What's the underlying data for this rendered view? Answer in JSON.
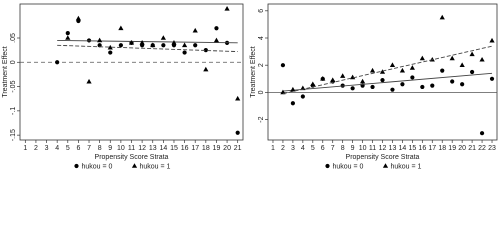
{
  "chart_data": [
    {
      "type": "scatter",
      "y_label": "Treatment Effect",
      "x_label": "Propensity Score Strata",
      "xlim": [
        0.5,
        21.5
      ],
      "xticks": [
        1,
        2,
        3,
        4,
        5,
        6,
        7,
        8,
        9,
        10,
        11,
        12,
        13,
        14,
        15,
        16,
        17,
        18,
        19,
        20,
        21
      ],
      "ylim": [
        -0.16,
        0.12
      ],
      "yticks": [
        {
          "value": -0.15,
          "label": "-.15"
        },
        {
          "value": -0.1,
          "label": "-.1"
        },
        {
          "value": -0.05,
          "label": "-.05"
        },
        0,
        {
          "value": 0.05,
          "label": ".05"
        }
      ],
      "reference_line": {
        "value": 0,
        "style": "dashed"
      },
      "series": [
        {
          "name": "hukou = 0",
          "marker": "circle",
          "color": "#000000",
          "x": [
            4,
            5,
            6,
            7,
            8,
            9,
            10,
            11,
            12,
            13,
            14,
            15,
            16,
            17,
            18,
            19,
            20,
            21
          ],
          "values": [
            0.0,
            0.06,
            0.085,
            0.045,
            0.035,
            0.02,
            0.035,
            0.04,
            0.035,
            0.035,
            0.035,
            0.035,
            0.02,
            0.035,
            0.025,
            0.07,
            0.04,
            -0.145
          ],
          "fit": {
            "style": "solid",
            "x": [
              4,
              21
            ],
            "values": [
              0.045,
              0.04
            ]
          }
        },
        {
          "name": "hukou = 1",
          "marker": "triangle",
          "color": "#000000",
          "x": [
            5,
            6,
            7,
            8,
            9,
            10,
            11,
            12,
            13,
            14,
            15,
            16,
            17,
            18,
            19,
            20,
            21
          ],
          "values": [
            0.05,
            0.09,
            -0.04,
            0.045,
            0.03,
            0.07,
            0.04,
            0.04,
            0.035,
            0.05,
            0.04,
            0.035,
            0.065,
            -0.015,
            0.045,
            0.11,
            -0.075
          ],
          "fit": {
            "style": "dashed",
            "x": [
              4,
              21
            ],
            "values": [
              0.035,
              0.022
            ]
          }
        }
      ]
    },
    {
      "type": "scatter",
      "y_label": "Treatment Effect",
      "x_label": "Propensity Score Strata",
      "xlim": [
        0.5,
        23.5
      ],
      "xticks": [
        1,
        2,
        3,
        4,
        5,
        6,
        7,
        8,
        9,
        10,
        11,
        12,
        13,
        14,
        15,
        16,
        17,
        18,
        19,
        20,
        21,
        22,
        23
      ],
      "ylim": [
        -3.5,
        6.5
      ],
      "yticks": [
        -2,
        0,
        2,
        4,
        6
      ],
      "reference_line": {
        "value": 0,
        "style": "solid"
      },
      "series": [
        {
          "name": "hukou = 0",
          "marker": "circle",
          "color": "#000000",
          "x": [
            2,
            3,
            4,
            5,
            6,
            7,
            8,
            9,
            10,
            11,
            12,
            13,
            14,
            15,
            16,
            17,
            18,
            19,
            20,
            21,
            22,
            23
          ],
          "values": [
            2,
            -0.8,
            -0.3,
            0.5,
            1,
            0.8,
            0.5,
            0.3,
            0.5,
            0.4,
            0.9,
            0.2,
            0.6,
            1.1,
            0.4,
            0.5,
            1.6,
            0.8,
            0.6,
            1.5,
            -3,
            1
          ],
          "fit": {
            "style": "solid",
            "x": [
              2,
              23
            ],
            "values": [
              0.1,
              1.4
            ]
          }
        },
        {
          "name": "hukou = 1",
          "marker": "triangle",
          "color": "#000000",
          "x": [
            2,
            3,
            4,
            5,
            6,
            7,
            8,
            9,
            10,
            11,
            12,
            13,
            14,
            15,
            16,
            17,
            18,
            19,
            20,
            21,
            22,
            23
          ],
          "values": [
            0,
            0.2,
            0.3,
            0.6,
            1,
            0.9,
            1.2,
            1.1,
            0.8,
            1.6,
            1.5,
            2,
            1.6,
            1.8,
            2.5,
            2.4,
            5.5,
            2.5,
            2,
            2.8,
            2.4,
            3.8
          ],
          "fit": {
            "style": "dashed",
            "x": [
              2,
              23
            ],
            "values": [
              -0.1,
              3.4
            ]
          }
        }
      ]
    }
  ]
}
